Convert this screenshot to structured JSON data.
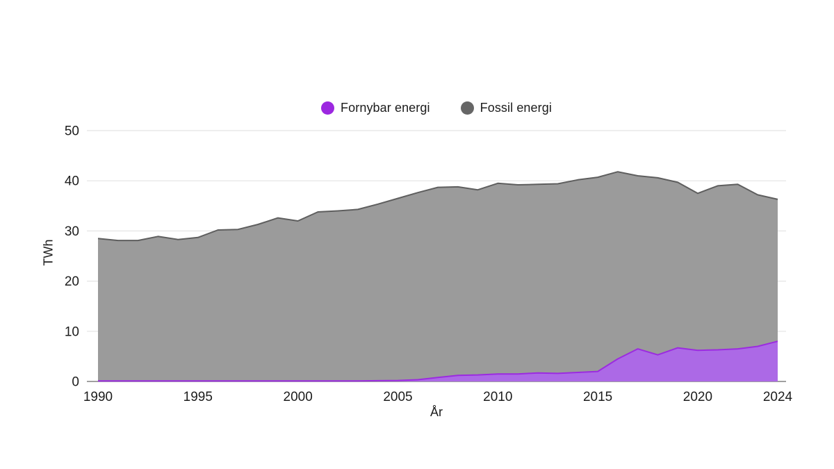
{
  "chart_data": {
    "type": "area",
    "stacked": true,
    "title": "",
    "xlabel": "År",
    "ylabel": "TWh",
    "grid": true,
    "legend_position": "top-center",
    "ylim": [
      0,
      50
    ],
    "yticks": [
      0,
      10,
      20,
      30,
      40,
      50
    ],
    "xticks": [
      1990,
      1995,
      2000,
      2005,
      2010,
      2015,
      2020,
      2024
    ],
    "x": [
      1990,
      1991,
      1992,
      1993,
      1994,
      1995,
      1996,
      1997,
      1998,
      1999,
      2000,
      2001,
      2002,
      2003,
      2004,
      2005,
      2006,
      2007,
      2008,
      2009,
      2010,
      2011,
      2012,
      2013,
      2014,
      2015,
      2016,
      2017,
      2018,
      2019,
      2020,
      2021,
      2022,
      2023,
      2024
    ],
    "series": [
      {
        "name": "Fornybar energi",
        "fill_color": "#ac69e6",
        "line_color": "#9b2be0",
        "legend_dot_color": "#9c27e0",
        "values": [
          0.1,
          0.1,
          0.1,
          0.1,
          0.1,
          0.1,
          0.1,
          0.1,
          0.1,
          0.1,
          0.1,
          0.1,
          0.1,
          0.1,
          0.15,
          0.2,
          0.35,
          0.8,
          1.2,
          1.3,
          1.5,
          1.5,
          1.7,
          1.6,
          1.8,
          2.0,
          4.5,
          6.5,
          5.3,
          6.7,
          6.2,
          6.3,
          6.5,
          7.0,
          8.0
        ]
      },
      {
        "name": "Fossil energi",
        "fill_color": "#9b9b9b",
        "line_color": "#5e5e5e",
        "legend_dot_color": "#666666",
        "values": [
          28.4,
          28.0,
          28.0,
          28.8,
          28.2,
          28.6,
          30.1,
          30.2,
          31.2,
          32.5,
          31.9,
          33.7,
          33.9,
          34.2,
          35.2,
          36.3,
          37.3,
          37.9,
          37.6,
          36.9,
          38.0,
          37.7,
          37.6,
          37.8,
          38.4,
          38.7,
          37.3,
          34.5,
          35.3,
          33.0,
          31.3,
          32.7,
          32.8,
          30.2,
          28.3
        ]
      }
    ],
    "grid_color": "#e4e4e4",
    "zero_line_color": "#808080",
    "text_color": "#1c1c1c"
  }
}
